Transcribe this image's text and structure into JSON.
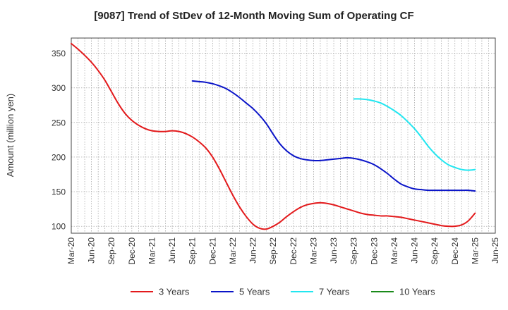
{
  "chart_data": {
    "type": "line",
    "title": "[9087]  Trend of StDev of 12-Month Moving Sum of Operating CF",
    "ylabel": "Amount (million yen)",
    "xlabel": "",
    "ylim": [
      90,
      372
    ],
    "yticks": [
      100,
      150,
      200,
      250,
      300,
      350
    ],
    "x_tick_labels": [
      "Mar-20",
      "Jun-20",
      "Sep-20",
      "Dec-20",
      "Mar-21",
      "Jun-21",
      "Sep-21",
      "Dec-21",
      "Mar-22",
      "Jun-22",
      "Sep-22",
      "Dec-22",
      "Mar-23",
      "Jun-23",
      "Sep-23",
      "Dec-23",
      "Mar-24",
      "Jun-24",
      "Sep-24",
      "Dec-24",
      "Mar-25",
      "Jun-25"
    ],
    "grid": true,
    "legend_position": "bottom",
    "series": [
      {
        "name": "3 Years",
        "color": "#e31a1c",
        "x": [
          "Mar-20",
          "Apr-20",
          "May-20",
          "Jun-20",
          "Jul-20",
          "Aug-20",
          "Sep-20",
          "Oct-20",
          "Nov-20",
          "Dec-20",
          "Jan-21",
          "Feb-21",
          "Mar-21",
          "Apr-21",
          "May-21",
          "Jun-21",
          "Jul-21",
          "Aug-21",
          "Sep-21",
          "Oct-21",
          "Nov-21",
          "Dec-21",
          "Jan-22",
          "Feb-22",
          "Mar-22",
          "Apr-22",
          "May-22",
          "Jun-22",
          "Jul-22",
          "Aug-22",
          "Sep-22",
          "Oct-22",
          "Nov-22",
          "Dec-22",
          "Jan-23",
          "Feb-23",
          "Mar-23",
          "Apr-23",
          "May-23",
          "Jun-23",
          "Jul-23",
          "Aug-23",
          "Sep-23",
          "Oct-23",
          "Nov-23",
          "Dec-23",
          "Jan-24",
          "Feb-24",
          "Mar-24",
          "Apr-24",
          "May-24",
          "Jun-24",
          "Jul-24",
          "Aug-24",
          "Sep-24",
          "Oct-24",
          "Nov-24",
          "Dec-24",
          "Jan-25",
          "Feb-25",
          "Mar-25"
        ],
        "values": [
          364,
          356,
          347,
          337,
          325,
          311,
          294,
          277,
          263,
          253,
          246,
          241,
          238,
          237,
          237,
          238,
          237,
          234,
          229,
          222,
          213,
          200,
          183,
          164,
          145,
          128,
          114,
          103,
          97,
          96,
          100,
          106,
          114,
          121,
          127,
          131,
          133,
          134,
          133,
          131,
          128,
          125,
          122,
          119,
          117,
          116,
          115,
          115,
          114,
          113,
          111,
          109,
          107,
          105,
          103,
          101,
          100,
          100,
          102,
          108,
          119
        ]
      },
      {
        "name": "5 Years",
        "color": "#0a14c8",
        "x": [
          "Mar-21",
          "Apr-21",
          "May-21",
          "Jun-21",
          "Jul-21",
          "Aug-21",
          "Sep-21",
          "Oct-21",
          "Nov-21",
          "Dec-21",
          "Jan-22",
          "Feb-22",
          "Mar-22",
          "Apr-22",
          "May-22",
          "Jun-22",
          "Jul-22",
          "Aug-22",
          "Sep-22",
          "Oct-22",
          "Nov-22",
          "Dec-22",
          "Jan-23",
          "Feb-23",
          "Mar-23",
          "Apr-23",
          "May-23",
          "Jun-23",
          "Jul-23",
          "Aug-23",
          "Sep-23",
          "Oct-23",
          "Nov-23",
          "Dec-23",
          "Jan-24",
          "Feb-24",
          "Mar-24",
          "Apr-24",
          "May-24",
          "Jun-24",
          "Jul-24",
          "Aug-24",
          "Sep-24",
          "Oct-24",
          "Nov-24",
          "Dec-24",
          "Jan-25",
          "Feb-25",
          "Mar-25"
        ],
        "values": [
          null,
          null,
          null,
          null,
          null,
          null,
          310,
          309,
          308,
          306,
          303,
          299,
          293,
          286,
          278,
          270,
          260,
          248,
          233,
          219,
          209,
          202,
          198,
          196,
          195,
          195,
          196,
          197,
          198,
          199,
          198,
          196,
          193,
          189,
          183,
          176,
          168,
          161,
          157,
          154,
          153,
          152,
          152,
          152,
          152,
          152,
          152,
          152,
          151
        ]
      },
      {
        "name": "7 Years",
        "color": "#22e6f0",
        "x": [
          "Sep-23",
          "Oct-23",
          "Nov-23",
          "Dec-23",
          "Jan-24",
          "Feb-24",
          "Mar-24",
          "Apr-24",
          "May-24",
          "Jun-24",
          "Jul-24",
          "Aug-24",
          "Sep-24",
          "Oct-24",
          "Nov-24",
          "Dec-24",
          "Jan-25",
          "Feb-25",
          "Mar-25"
        ],
        "values": [
          284,
          284,
          283,
          281,
          278,
          273,
          267,
          260,
          251,
          241,
          229,
          216,
          205,
          196,
          189,
          185,
          182,
          181,
          182
        ]
      },
      {
        "name": "10 Years",
        "color": "#1a8a1a",
        "x": [],
        "values": []
      }
    ]
  }
}
